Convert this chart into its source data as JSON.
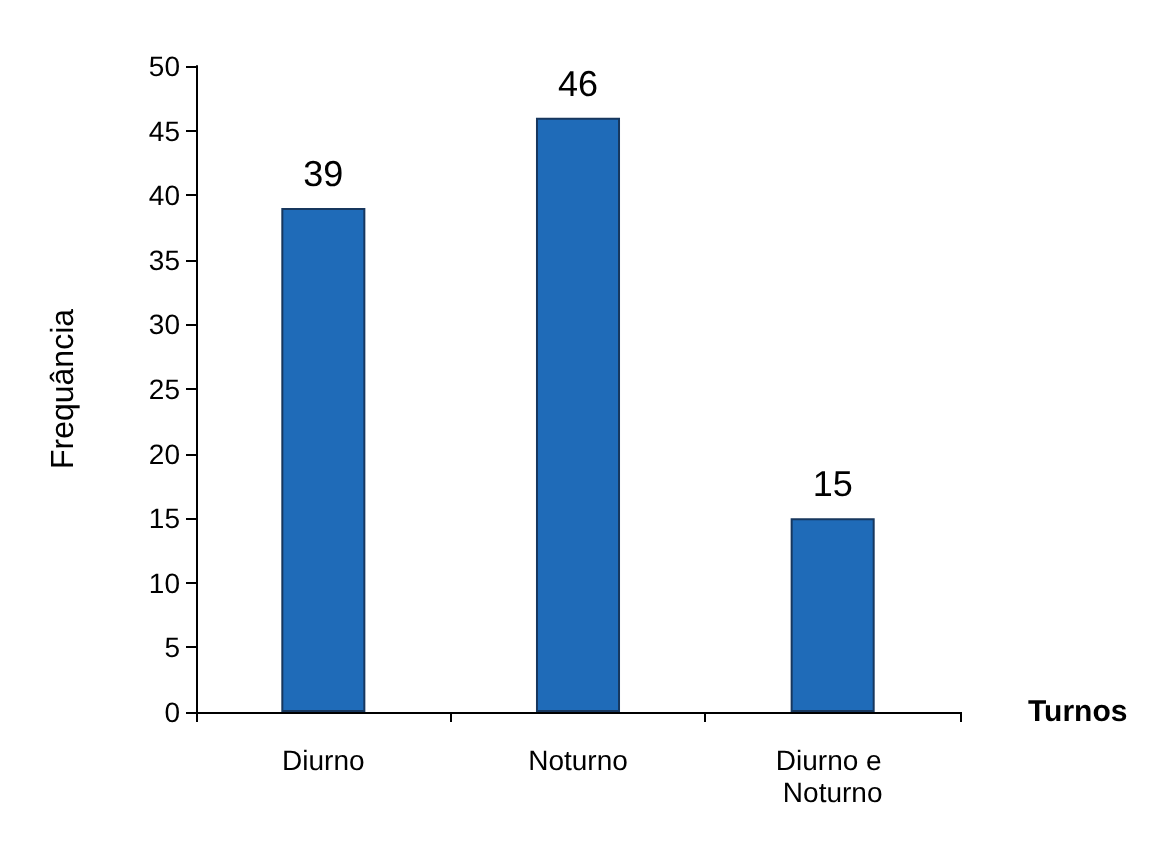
{
  "chart_data": {
    "type": "bar",
    "xlabel": "Turnos",
    "ylabel": "Frequância",
    "categories": [
      "Diurno",
      "Noturno",
      "Diurno e Noturno"
    ],
    "values": [
      39,
      46,
      15
    ],
    "color": "#1f6bb8",
    "ylim": [
      0,
      50
    ],
    "yticks": [
      0,
      5,
      10,
      15,
      20,
      25,
      30,
      35,
      40,
      45,
      50
    ],
    "data_labels": true
  }
}
